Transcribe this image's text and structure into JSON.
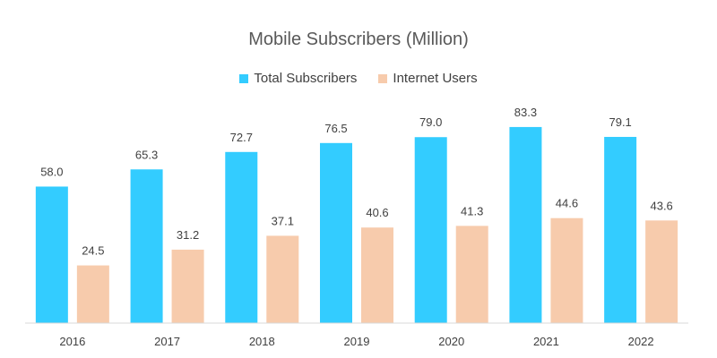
{
  "chart_data": {
    "type": "bar",
    "title": "Mobile Subscribers (Million)",
    "xlabel": "",
    "ylabel": "",
    "categories": [
      "2016",
      "2017",
      "2018",
      "2019",
      "2020",
      "2021",
      "2022"
    ],
    "series": [
      {
        "name": "Total Subscribers",
        "color": "#33CCFF",
        "values": [
          58.0,
          65.3,
          72.7,
          76.5,
          79.0,
          83.3,
          79.1
        ],
        "labels": [
          "58.0",
          "65.3",
          "72.7",
          "76.5",
          "79.0",
          "83.3",
          "79.1"
        ]
      },
      {
        "name": "Internet Users",
        "color": "#F7CBAC",
        "values": [
          24.5,
          31.2,
          37.1,
          40.6,
          41.3,
          44.6,
          43.6
        ],
        "labels": [
          "24.5",
          "31.2",
          "37.1",
          "40.6",
          "41.3",
          "44.6",
          "43.6"
        ]
      }
    ],
    "ylim": [
      0,
      90
    ],
    "grid": false,
    "legend_position": "top"
  },
  "colors": {
    "axis_line": "#D9D9D9"
  }
}
